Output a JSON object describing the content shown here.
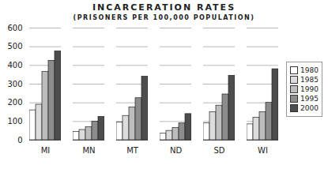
{
  "chart_data": {
    "type": "bar",
    "title": "INCARCERATION RATES",
    "subtitle": "(PRISONERS PER 100,000 POPULATION)",
    "categories": [
      "MI",
      "MN",
      "MT",
      "ND",
      "SD",
      "WI"
    ],
    "series": [
      {
        "name": "1980",
        "color": "#ffffff",
        "values": [
          160,
          45,
          95,
          35,
          90,
          85
        ]
      },
      {
        "name": "1985",
        "color": "#dcdcdc",
        "values": [
          190,
          55,
          130,
          50,
          150,
          120
        ]
      },
      {
        "name": "1990",
        "color": "#bdbdbd",
        "values": [
          365,
          70,
          175,
          65,
          185,
          150
        ]
      },
      {
        "name": "1995",
        "color": "#8c8c8c",
        "values": [
          425,
          100,
          225,
          90,
          245,
          200
        ]
      },
      {
        "name": "2000",
        "color": "#4d4d4d",
        "values": [
          475,
          125,
          340,
          140,
          345,
          380
        ]
      }
    ],
    "ylim": [
      0,
      600
    ],
    "yticks": [
      0,
      100,
      200,
      300,
      400,
      500,
      600
    ],
    "grid": true,
    "legend": "right"
  }
}
